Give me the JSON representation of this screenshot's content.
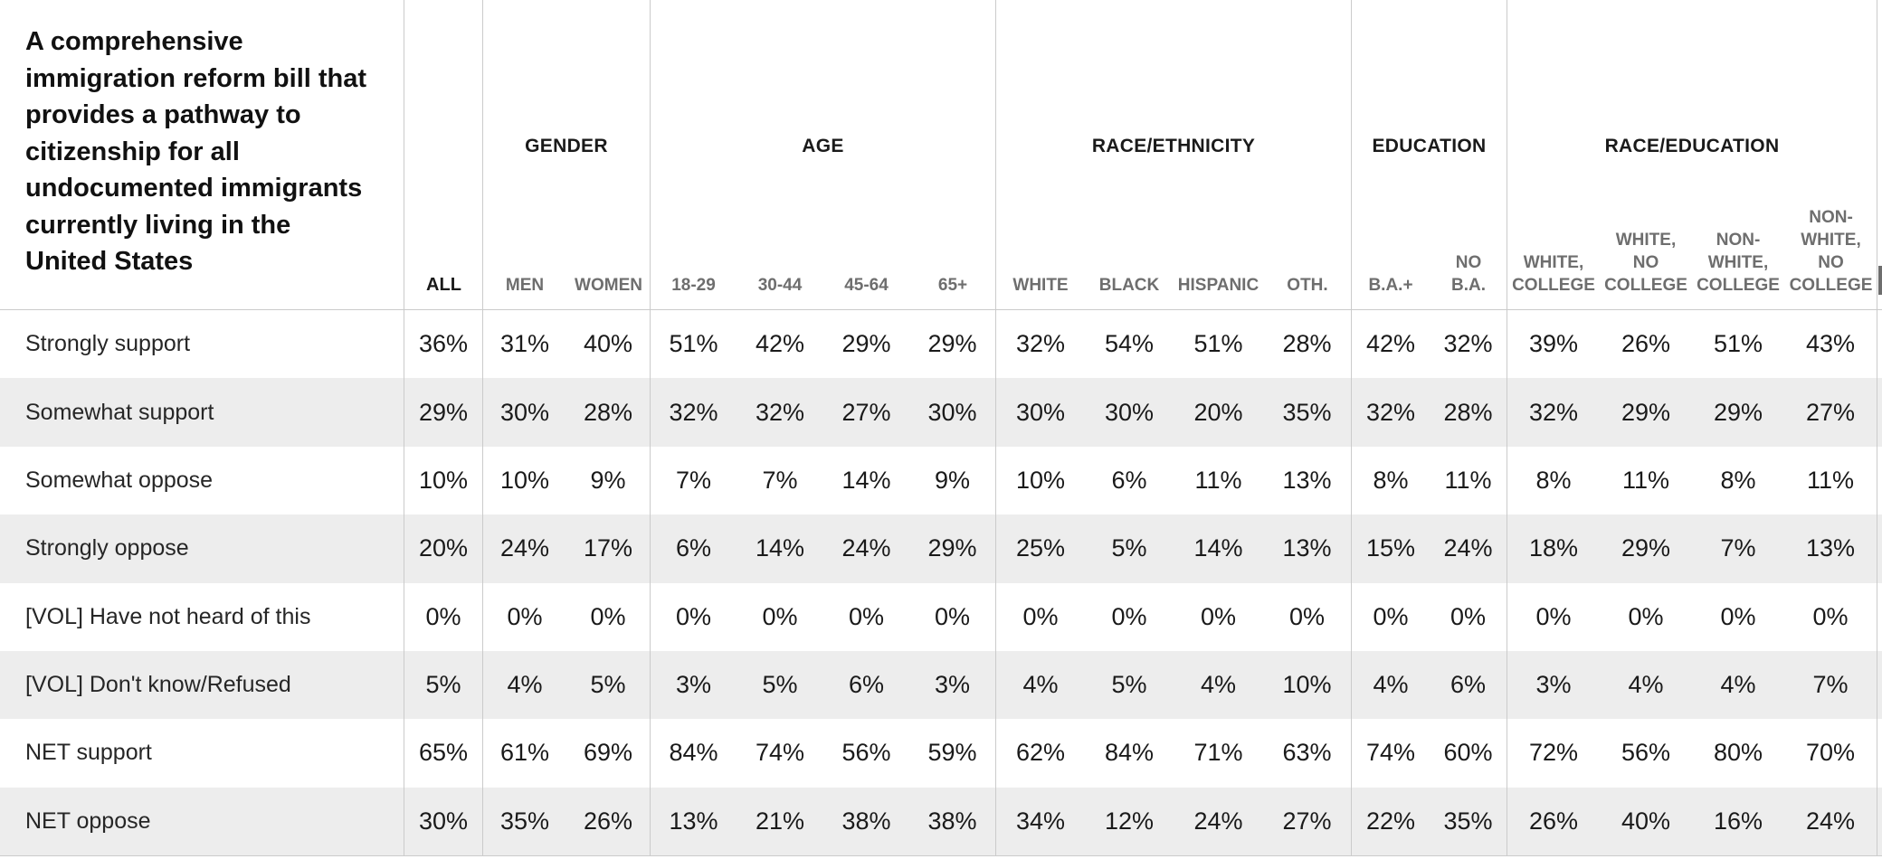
{
  "table": {
    "question": "A comprehensive\nimmigration reform bill that\nprovides a pathway to\ncitizenship for all\nundocumented immigrants\ncurrently living in the\nUnited States",
    "sections": [
      {
        "title": "",
        "columns": [
          "ALL"
        ],
        "emphasis": true
      },
      {
        "title": "GENDER",
        "columns": [
          "MEN",
          "WOMEN"
        ]
      },
      {
        "title": "AGE",
        "columns": [
          "18-29",
          "30-44",
          "45-64",
          "65+"
        ]
      },
      {
        "title": "RACE/ETHNICITY",
        "columns": [
          "WHITE",
          "BLACK",
          "HISPANIC",
          "OTH."
        ]
      },
      {
        "title": "EDUCATION",
        "columns": [
          "B.A.+",
          "NO\nB.A."
        ]
      },
      {
        "title": "RACE/EDUCATION",
        "columns": [
          "WHITE,\nCOLLEGE",
          "WHITE,\nNO\nCOLLEGE",
          "NON-\nWHITE,\nCOLLEGE",
          "NON-\nWHITE,\nNO\nCOLLEGE"
        ]
      }
    ],
    "rows": [
      {
        "label": "Strongly support",
        "values": [
          "36%",
          "31%",
          "40%",
          "51%",
          "42%",
          "29%",
          "29%",
          "32%",
          "54%",
          "51%",
          "28%",
          "42%",
          "32%",
          "39%",
          "26%",
          "51%",
          "43%"
        ]
      },
      {
        "label": "Somewhat support",
        "values": [
          "29%",
          "30%",
          "28%",
          "32%",
          "32%",
          "27%",
          "30%",
          "30%",
          "30%",
          "20%",
          "35%",
          "32%",
          "28%",
          "32%",
          "29%",
          "29%",
          "27%"
        ]
      },
      {
        "label": "Somewhat oppose",
        "values": [
          "10%",
          "10%",
          "9%",
          "7%",
          "7%",
          "14%",
          "9%",
          "10%",
          "6%",
          "11%",
          "13%",
          "8%",
          "11%",
          "8%",
          "11%",
          "8%",
          "11%"
        ]
      },
      {
        "label": "Strongly oppose",
        "values": [
          "20%",
          "24%",
          "17%",
          "6%",
          "14%",
          "24%",
          "29%",
          "25%",
          "5%",
          "14%",
          "13%",
          "15%",
          "24%",
          "18%",
          "29%",
          "7%",
          "13%"
        ]
      },
      {
        "label": "[VOL] Have not heard of this",
        "values": [
          "0%",
          "0%",
          "0%",
          "0%",
          "0%",
          "0%",
          "0%",
          "0%",
          "0%",
          "0%",
          "0%",
          "0%",
          "0%",
          "0%",
          "0%",
          "0%",
          "0%"
        ]
      },
      {
        "label": "[VOL] Don't know/Refused",
        "values": [
          "5%",
          "4%",
          "5%",
          "3%",
          "5%",
          "6%",
          "3%",
          "4%",
          "5%",
          "4%",
          "10%",
          "4%",
          "6%",
          "3%",
          "4%",
          "4%",
          "7%"
        ]
      },
      {
        "label": "NET support",
        "values": [
          "65%",
          "61%",
          "69%",
          "84%",
          "74%",
          "56%",
          "59%",
          "62%",
          "84%",
          "71%",
          "63%",
          "74%",
          "60%",
          "72%",
          "56%",
          "80%",
          "70%"
        ]
      },
      {
        "label": "NET oppose",
        "values": [
          "30%",
          "35%",
          "26%",
          "13%",
          "21%",
          "38%",
          "38%",
          "34%",
          "12%",
          "24%",
          "27%",
          "22%",
          "35%",
          "26%",
          "40%",
          "16%",
          "24%"
        ]
      }
    ],
    "colors": {
      "stripe": "#ededed",
      "grid_line": "#cbcbcb",
      "heading_ink": "#1a1a1a",
      "subheading_ink": "#6e6e6e"
    }
  }
}
